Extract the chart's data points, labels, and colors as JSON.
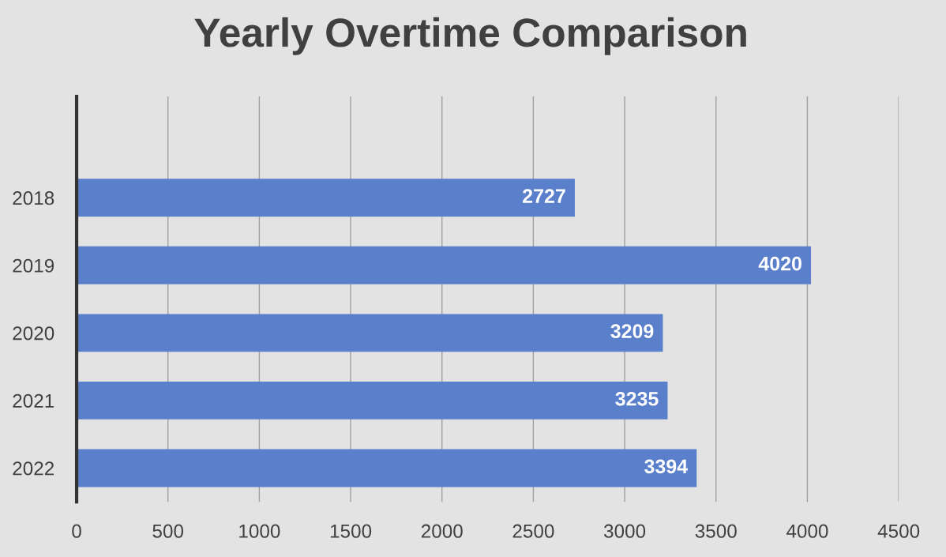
{
  "chart_data": {
    "type": "bar",
    "orientation": "horizontal",
    "title": "Yearly Overtime Comparison",
    "categories": [
      null,
      "2018",
      "2019",
      "2020",
      "2021",
      "2022"
    ],
    "values": [
      null,
      2727,
      4020,
      3209,
      3235,
      3394
    ],
    "color": "#5a7fcb",
    "xlim": [
      0,
      4500
    ],
    "xticks": [
      0,
      500,
      1000,
      1500,
      2000,
      2500,
      3000,
      3500,
      4000,
      4500
    ],
    "grid": "x",
    "data_labels": true
  }
}
